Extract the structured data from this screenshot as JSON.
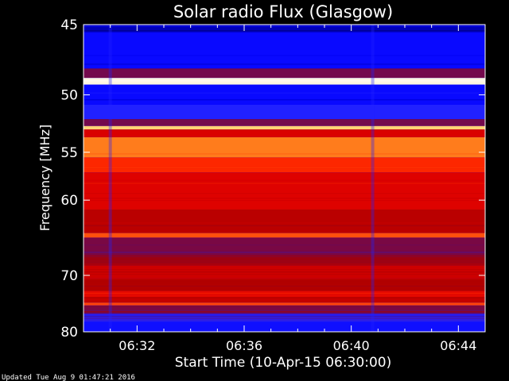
{
  "chart_data": {
    "type": "heatmap",
    "title": "Solar radio Flux (Glasgow)",
    "xlabel": "Start Time (10-Apr-15 06:30:00)",
    "ylabel": "Frequency [MHz]",
    "x_tick_labels": [
      "06:32",
      "06:36",
      "06:40",
      "06:44"
    ],
    "x_tick_minutes": [
      2,
      6,
      10,
      14
    ],
    "xlim_minutes": [
      0,
      15
    ],
    "y_ticks": [
      45,
      50,
      55,
      60,
      70,
      80
    ],
    "ylim": [
      45,
      80
    ],
    "y_scale": "reciprocal",
    "grid": false,
    "colormap": [
      "#00007a",
      "#0000ff",
      "#2222ff",
      "#6a0a5a",
      "#aa0000",
      "#dd0000",
      "#ff2a00",
      "#ff7a1a",
      "#ffcc66",
      "#ffffff"
    ],
    "frequency_bands": [
      {
        "f_start": 45.0,
        "f_end": 45.5,
        "level": 0.05
      },
      {
        "f_start": 45.5,
        "f_end": 48.0,
        "level": 0.14
      },
      {
        "f_start": 48.0,
        "f_end": 48.7,
        "level": 0.35
      },
      {
        "f_start": 48.7,
        "f_end": 49.2,
        "level": 0.98
      },
      {
        "f_start": 49.2,
        "f_end": 50.8,
        "level": 0.14
      },
      {
        "f_start": 50.8,
        "f_end": 52.0,
        "level": 0.22
      },
      {
        "f_start": 52.0,
        "f_end": 52.6,
        "level": 0.35
      },
      {
        "f_start": 52.6,
        "f_end": 52.9,
        "level": 0.9
      },
      {
        "f_start": 52.9,
        "f_end": 53.6,
        "level": 0.55
      },
      {
        "f_start": 53.6,
        "f_end": 55.5,
        "level": 0.78
      },
      {
        "f_start": 55.5,
        "f_end": 57.0,
        "level": 0.66
      },
      {
        "f_start": 57.0,
        "f_end": 61.0,
        "level": 0.56
      },
      {
        "f_start": 61.0,
        "f_end": 64.0,
        "level": 0.48
      },
      {
        "f_start": 64.0,
        "f_end": 64.6,
        "level": 0.72
      },
      {
        "f_start": 64.6,
        "f_end": 67.0,
        "level": 0.36
      },
      {
        "f_start": 67.0,
        "f_end": 68.5,
        "level": 0.42
      },
      {
        "f_start": 68.5,
        "f_end": 70.5,
        "level": 0.52
      },
      {
        "f_start": 70.5,
        "f_end": 72.5,
        "level": 0.46
      },
      {
        "f_start": 72.5,
        "f_end": 73.5,
        "level": 0.58
      },
      {
        "f_start": 73.5,
        "f_end": 74.5,
        "level": 0.5
      },
      {
        "f_start": 74.5,
        "f_end": 75.0,
        "level": 0.7
      },
      {
        "f_start": 75.0,
        "f_end": 76.5,
        "level": 0.36
      },
      {
        "f_start": 76.5,
        "f_end": 78.0,
        "level": 0.24
      },
      {
        "f_start": 78.0,
        "f_end": 80.0,
        "level": 0.16
      }
    ]
  },
  "footer": {
    "updated": "Updated Tue Aug  9 01:47:21 2016"
  }
}
